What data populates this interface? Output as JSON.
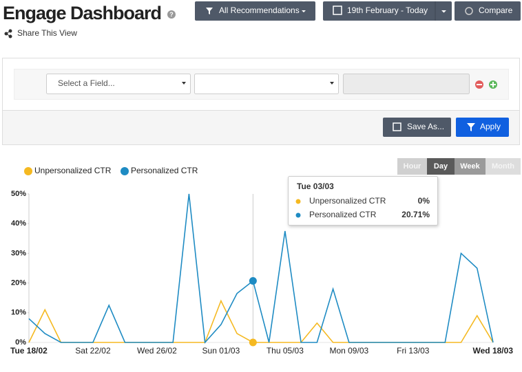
{
  "header": {
    "title": "Engage Dashboard",
    "share": "Share This View",
    "buttons": [
      "All Recommendations",
      "19th February - Today",
      "Compare"
    ]
  },
  "filter": {
    "field_placeholder": "Select a Field...",
    "save": "Save As...",
    "apply": "Apply"
  },
  "time_buttons": [
    "Hour",
    "Day",
    "Week",
    "Month"
  ],
  "active_time_button": "Day",
  "chart_data": {
    "type": "line",
    "categories": [
      "Tue 18/02",
      null,
      null,
      null,
      "Sat 22/02",
      null,
      null,
      null,
      "Wed 26/02",
      null,
      null,
      null,
      "Sun 01/03",
      null,
      null,
      null,
      "Thu 05/03",
      null,
      null,
      null,
      "Mon 09/03",
      null,
      null,
      null,
      "Fri 13/03",
      null,
      null,
      null,
      null,
      "Wed 18/03"
    ],
    "series": [
      {
        "name": "Unpersonalized CTR",
        "color": "#f5b921",
        "values": [
          0,
          11,
          0,
          0,
          0,
          0,
          0,
          0,
          0,
          0,
          0,
          0,
          14,
          3,
          0,
          0,
          0,
          0,
          6.5,
          0,
          0,
          0,
          0,
          0,
          0,
          0,
          0,
          0,
          9,
          0
        ]
      },
      {
        "name": "Personalized CTR",
        "color": "#1e8bc3",
        "values": [
          8,
          3,
          0,
          0,
          0,
          12.5,
          0,
          0,
          0,
          0,
          50,
          0,
          6,
          16.5,
          20.71,
          0,
          37.5,
          0,
          0,
          18,
          0,
          0,
          0,
          0,
          0,
          0,
          0,
          30,
          25,
          0
        ]
      }
    ],
    "ylim": [
      0,
      50
    ],
    "yticks": [
      {
        "value": 0,
        "label": "0%"
      },
      {
        "value": 10,
        "label": "10%"
      },
      {
        "value": 20,
        "label": "20%"
      },
      {
        "value": 30,
        "label": "30%"
      },
      {
        "value": 40,
        "label": "40%"
      },
      {
        "value": 50,
        "label": "50%"
      }
    ],
    "grid": false
  },
  "tooltip": {
    "title": "Tue 03/03",
    "rows": [
      {
        "label": "Unpersonalized CTR",
        "value": "0%"
      },
      {
        "label": "Personalized CTR",
        "value": "20.71%"
      }
    ]
  }
}
